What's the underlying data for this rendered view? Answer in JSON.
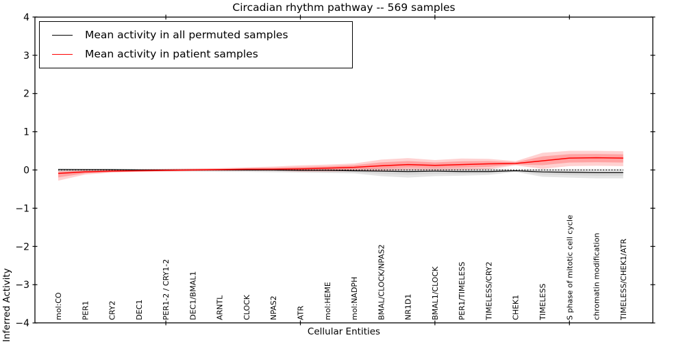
{
  "figure": {
    "title": "Circadian rhythm pathway -- 569 samples",
    "xlabel": "Cellular Entities",
    "ylabel": "Inferred Activity"
  },
  "legend": {
    "position": "upper left",
    "items": [
      {
        "label": "Mean activity in all permuted samples",
        "color": "#000000"
      },
      {
        "label": "Mean activity in patient samples",
        "color": "#ff0000"
      }
    ]
  },
  "chart_data": {
    "type": "line",
    "title": "Circadian rhythm pathway -- 569 samples",
    "xlabel": "Cellular Entities",
    "ylabel": "Inferred Activity",
    "ylim": [
      -4,
      4
    ],
    "yticks": [
      -4,
      -3,
      -2,
      -1,
      0,
      1,
      2,
      3,
      4
    ],
    "ytick_labels": [
      "−4",
      "−3",
      "−2",
      "−1",
      "0",
      "1",
      "2",
      "3",
      "4"
    ],
    "x_major_tick_values": [
      5,
      10,
      15,
      20
    ],
    "grid": false,
    "legend_position": "upper left",
    "categories": [
      "mol:CO",
      "PER1",
      "CRY2",
      "DEC1",
      "PER1-2 / CRY1-2",
      "DEC1/BMAL1",
      "ARNTL",
      "CLOCK",
      "NPAS2",
      "ATR",
      "mol:HEME",
      "mol:NADPH",
      "BMAL/CLOCK/NPAS2",
      "NR1D1",
      "BMAL1/CLOCK",
      "PER1/TIMELESS",
      "TIMELESS/CRY2",
      "CHEK1",
      "TIMELESS",
      "S phase of mitotic cell cycle",
      "chromatin modification",
      "TIMELESS/CHEK1/ATR"
    ],
    "zero_reference_line": {
      "value": 0,
      "style": "dotted",
      "color": "#000000"
    },
    "series": [
      {
        "name": "Mean activity in all permuted samples",
        "color": "#000000",
        "band_color": "#000000",
        "band_opacity_outer": 0.1,
        "band_opacity_inner": 0.06,
        "line_width": 1.2,
        "values": [
          0.01,
          0.01,
          0.01,
          0.0,
          0.0,
          0.0,
          0.0,
          0.0,
          0.0,
          -0.01,
          -0.01,
          -0.02,
          -0.03,
          -0.04,
          -0.03,
          -0.04,
          -0.04,
          -0.02,
          -0.05,
          -0.06,
          -0.07,
          -0.07
        ],
        "band_upper": [
          0.04,
          0.03,
          0.03,
          0.03,
          0.03,
          0.03,
          0.03,
          0.03,
          0.04,
          0.04,
          0.04,
          0.04,
          0.05,
          0.05,
          0.05,
          0.05,
          0.05,
          0.01,
          0.03,
          0.03,
          0.03,
          0.03
        ],
        "band_lower": [
          -0.05,
          -0.05,
          -0.04,
          -0.04,
          -0.04,
          -0.04,
          -0.05,
          -0.05,
          -0.06,
          -0.07,
          -0.08,
          -0.09,
          -0.16,
          -0.2,
          -0.16,
          -0.15,
          -0.13,
          -0.05,
          -0.18,
          -0.2,
          -0.22,
          -0.22
        ]
      },
      {
        "name": "Mean activity in patient samples",
        "color": "#ff0000",
        "band_color": "#ff0000",
        "band_opacity_outer": 0.18,
        "band_opacity_inner": 0.22,
        "line_width": 1.5,
        "values": [
          -0.09,
          -0.05,
          -0.03,
          -0.02,
          -0.01,
          0.0,
          0.01,
          0.02,
          0.02,
          0.03,
          0.05,
          0.07,
          0.11,
          0.14,
          0.12,
          0.14,
          0.16,
          0.17,
          0.24,
          0.31,
          0.32,
          0.31
        ],
        "band_upper": [
          -0.02,
          0.0,
          0.01,
          0.02,
          0.03,
          0.04,
          0.05,
          0.07,
          0.09,
          0.12,
          0.14,
          0.17,
          0.27,
          0.31,
          0.26,
          0.3,
          0.29,
          0.23,
          0.45,
          0.5,
          0.5,
          0.49
        ],
        "band_lower": [
          -0.28,
          -0.12,
          -0.07,
          -0.05,
          -0.04,
          -0.03,
          -0.02,
          -0.02,
          -0.02,
          -0.04,
          -0.04,
          -0.03,
          -0.02,
          0.0,
          -0.01,
          0.0,
          0.02,
          0.12,
          0.03,
          0.1,
          0.11,
          0.1
        ]
      }
    ]
  }
}
